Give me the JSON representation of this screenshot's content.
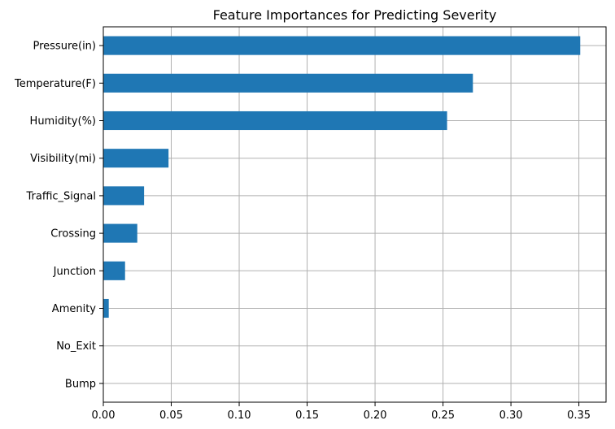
{
  "chart_data": {
    "type": "bar",
    "orientation": "horizontal",
    "title": "Feature Importances for Predicting Severity",
    "xlabel": "",
    "ylabel": "",
    "categories": [
      "Pressure(in)",
      "Temperature(F)",
      "Humidity(%)",
      "Visibility(mi)",
      "Traffic_Signal",
      "Crossing",
      "Junction",
      "Amenity",
      "No_Exit",
      "Bump"
    ],
    "values": [
      0.351,
      0.272,
      0.253,
      0.048,
      0.03,
      0.025,
      0.016,
      0.004,
      0.0,
      0.0
    ],
    "xlim": [
      0,
      0.37
    ],
    "x_ticks": [
      0.0,
      0.05,
      0.1,
      0.15,
      0.2,
      0.25,
      0.3,
      0.35
    ],
    "x_tick_labels": [
      "0.00",
      "0.05",
      "0.10",
      "0.15",
      "0.20",
      "0.25",
      "0.30",
      "0.35"
    ],
    "grid": true,
    "bar_color": "#1f77b4",
    "grid_color": "#b0b0b0"
  }
}
